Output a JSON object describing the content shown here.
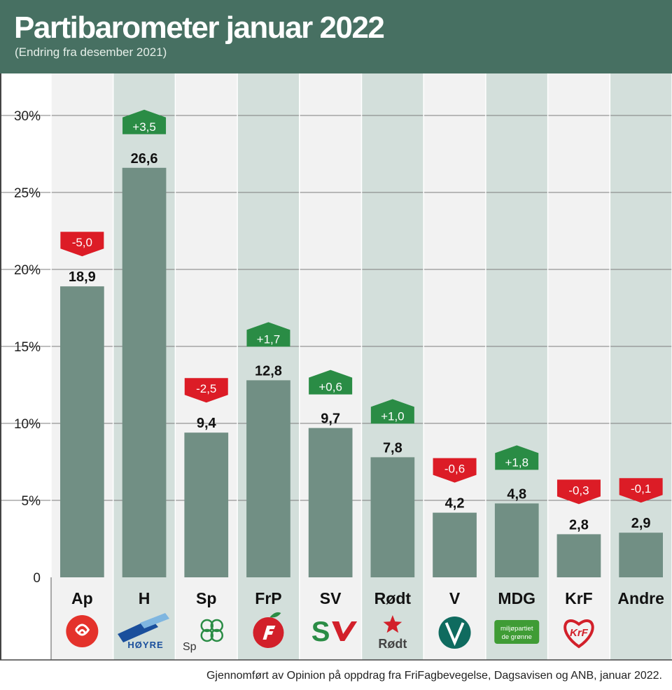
{
  "title": "Partibarometer januar 2022",
  "subtitle": "(Endring fra desember 2021)",
  "source": "Gjennomført av Opinion på oppdrag fra FriFagbevegelse, Dagsavisen og ANB, januar 2022.",
  "colors": {
    "header": "#477062",
    "bar": "#718f84",
    "column_light": "#f2f2f2",
    "column_dark": "#d3dfdb",
    "change_positive": "#2a8c45",
    "change_negative": "#dc1c26",
    "gridline": "#7d7d7d"
  },
  "chart_data": {
    "type": "bar",
    "title": "Partibarometer januar 2022",
    "subtitle": "(Endring fra desember 2021)",
    "ylim": [
      0,
      32
    ],
    "yticks": [
      0,
      5,
      10,
      15,
      20,
      25,
      30
    ],
    "ytick_labels": [
      "0",
      "5%",
      "10%",
      "15%",
      "20%",
      "25%",
      "30%"
    ],
    "grid": true,
    "categories": [
      "Ap",
      "H",
      "Sp",
      "FrP",
      "SV",
      "Rødt",
      "V",
      "MDG",
      "KrF",
      "Andre"
    ],
    "values": [
      18.9,
      26.6,
      9.4,
      12.8,
      9.7,
      7.8,
      4.2,
      4.8,
      2.8,
      2.9
    ],
    "value_labels": [
      "18,9",
      "26,6",
      "9,4",
      "12,8",
      "9,7",
      "7,8",
      "4,2",
      "4,8",
      "2,8",
      "2,9"
    ],
    "changes": [
      -5.0,
      3.5,
      -2.5,
      1.7,
      0.6,
      1.0,
      -0.6,
      1.8,
      -0.3,
      -0.1
    ],
    "change_labels": [
      "-5,0",
      "+3,5",
      "-2,5",
      "+1,7",
      "+0,6",
      "+1,0",
      "-0,6",
      "+1,8",
      "-0,3",
      "-0,1"
    ],
    "logos": [
      "ap-rose-logo",
      "hoyre-logo",
      "sp-clover-logo",
      "frp-apple-logo",
      "sv-logo",
      "rodt-star-logo",
      "venstre-v-logo",
      "mdg-logo",
      "krf-heart-logo",
      ""
    ],
    "logo_text": {
      "H": "HØYRE",
      "Sp": "Sp",
      "Rødt": "Rødt",
      "MDG": [
        "miljøpartiet",
        "de grønne"
      ],
      "KrF": "KrF"
    }
  }
}
